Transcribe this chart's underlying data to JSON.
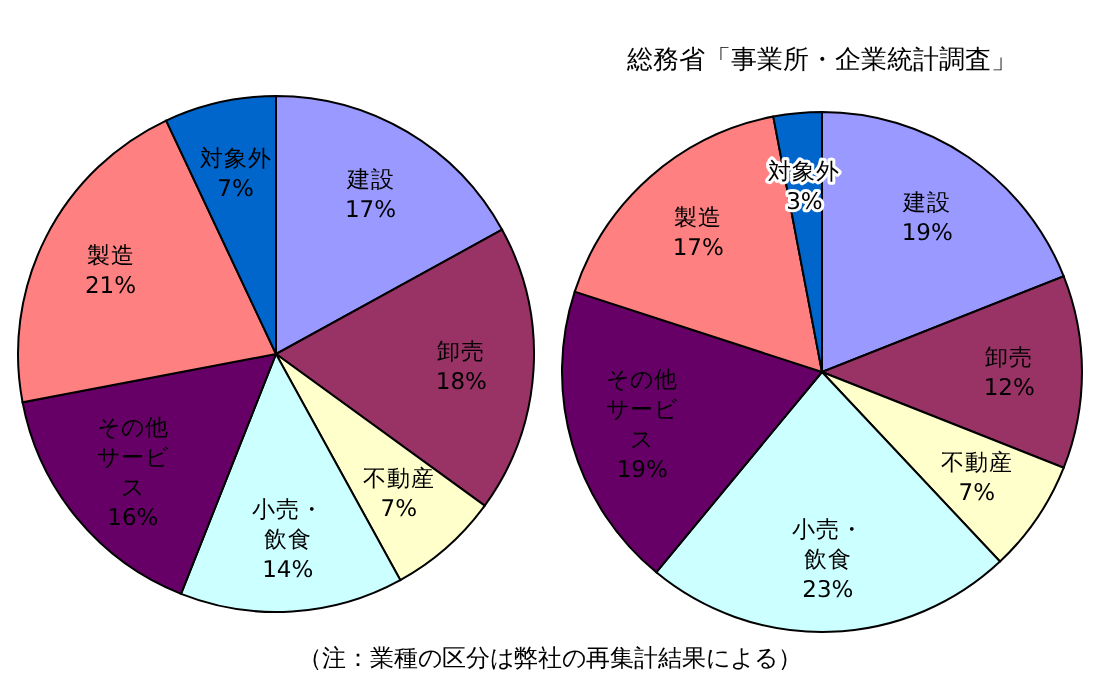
{
  "chart_data": [
    {
      "type": "pie",
      "categories": [
        "建設",
        "卸売",
        "不動産",
        "小売・飲食",
        "その他サービス",
        "製造",
        "対象外"
      ],
      "values": [
        17,
        18,
        7,
        14,
        16,
        21,
        7
      ],
      "value_labels": [
        "17%",
        "18%",
        "7%",
        "14%",
        "16%",
        "21%",
        "7%"
      ],
      "colors": [
        "#9999ff",
        "#993366",
        "#ffffcc",
        "#ccffff",
        "#660066",
        "#ff8080",
        "#0066cc"
      ],
      "annotations": [
        "（注：業種の区分は弊社の再集計結果による）"
      ]
    },
    {
      "type": "pie",
      "title": "総務省「事業所・企業統計調査」",
      "categories": [
        "建設",
        "卸売",
        "不動産",
        "小売・飲食",
        "その他サービス",
        "製造",
        "対象外"
      ],
      "values": [
        19,
        12,
        7,
        23,
        19,
        17,
        3
      ],
      "value_labels": [
        "19%",
        "12%",
        "7%",
        "23%",
        "19%",
        "17%",
        "3%"
      ],
      "colors": [
        "#9999ff",
        "#993366",
        "#ffffcc",
        "#ccffff",
        "#660066",
        "#ff8080",
        "#0066cc"
      ]
    }
  ]
}
